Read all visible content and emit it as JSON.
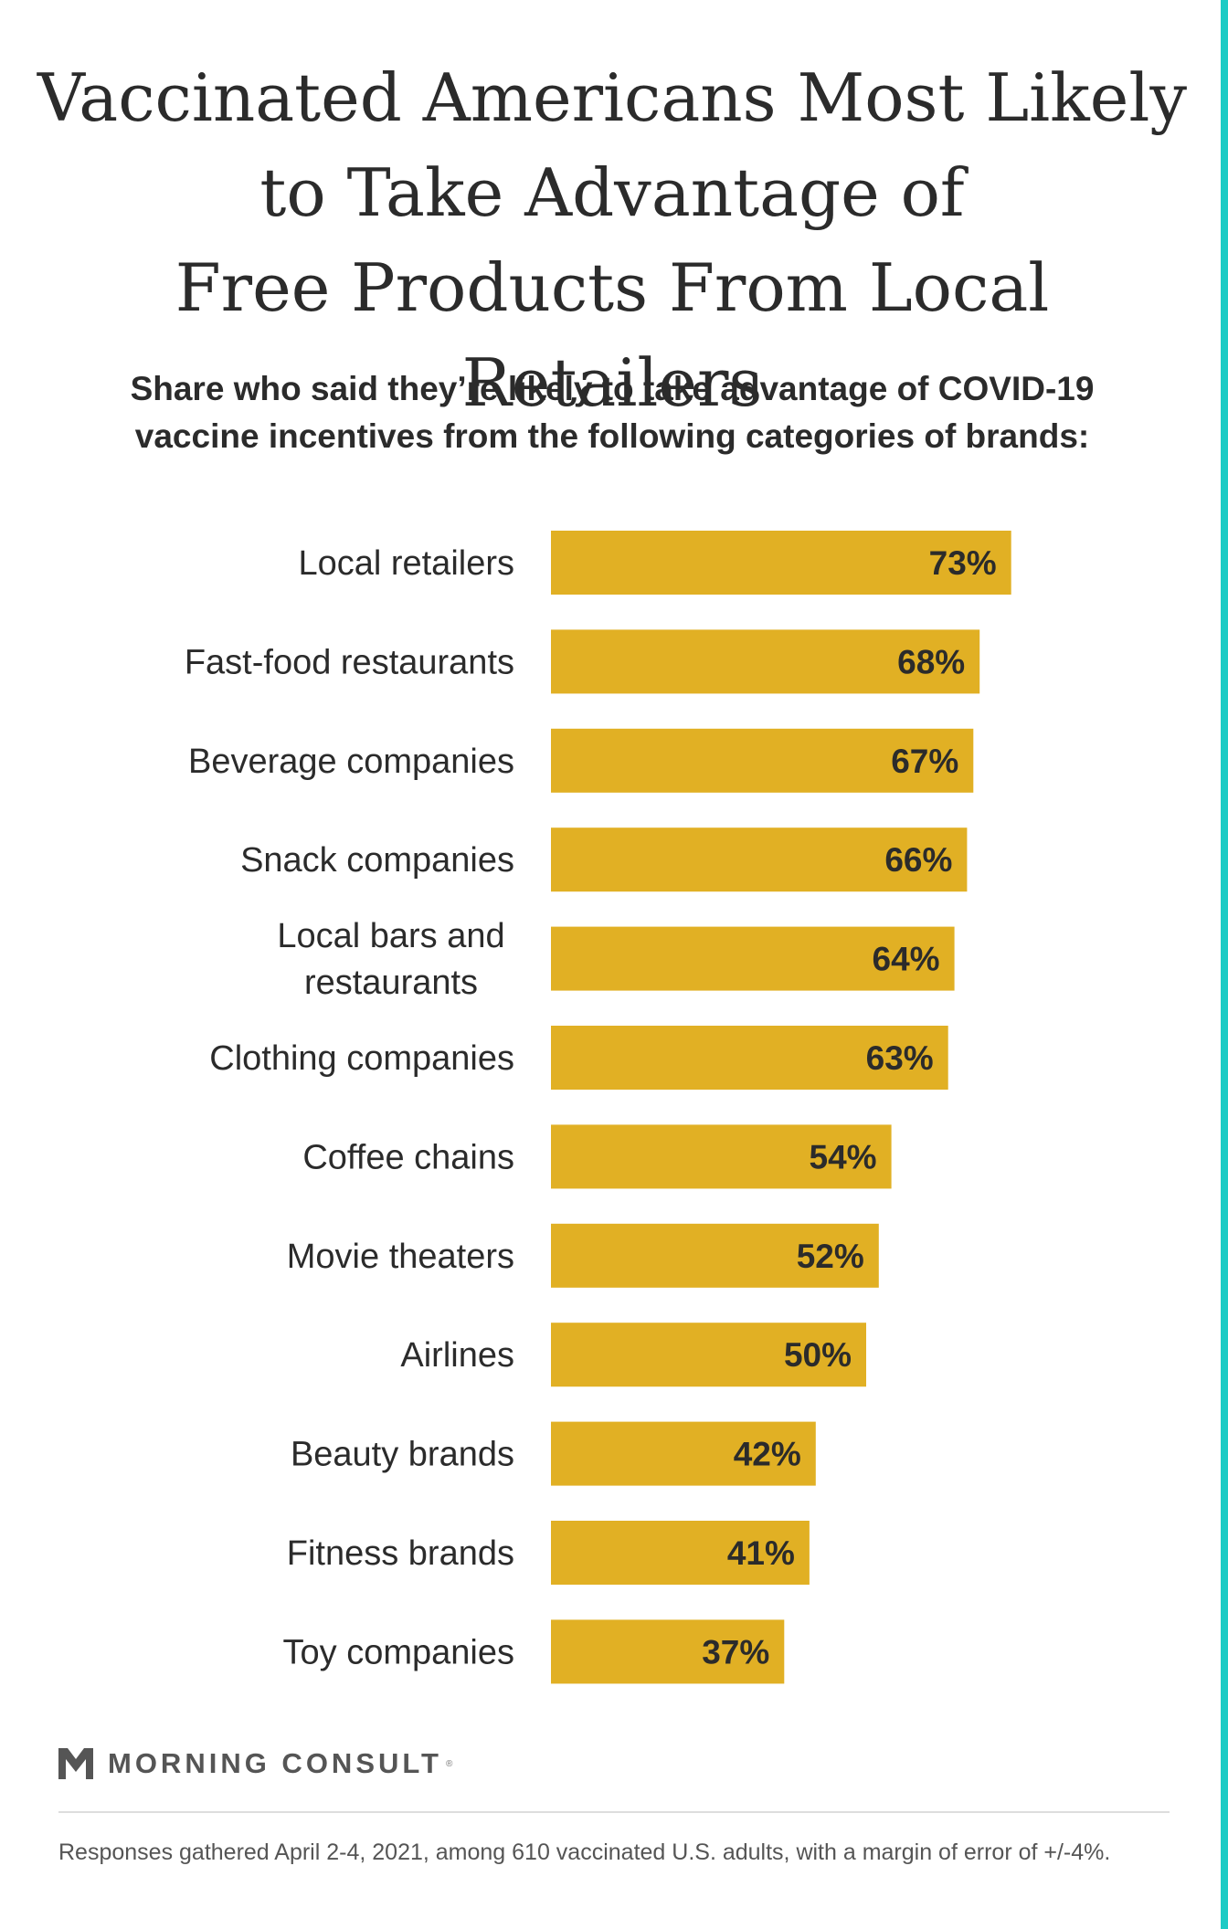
{
  "title_lines": [
    "Vaccinated Americans Most Likely",
    "to Take Advantage of",
    "Free Products From Local Retailers"
  ],
  "subtitle_lines": [
    "Share who said they’re likely to take advantage of COVID-19",
    "vaccine incentives from the following categories of brands:"
  ],
  "colors": {
    "bar": "#e1b024",
    "accent": "#1ecbc5",
    "text": "#2b2b2b"
  },
  "chart_data": {
    "type": "bar",
    "orientation": "horizontal",
    "categories": [
      [
        "Local retailers"
      ],
      [
        "Fast-food restaurants"
      ],
      [
        "Beverage companies"
      ],
      [
        "Snack companies"
      ],
      [
        "Local bars and",
        "restaurants"
      ],
      [
        "Clothing companies"
      ],
      [
        "Coffee chains"
      ],
      [
        "Movie theaters"
      ],
      [
        "Airlines"
      ],
      [
        "Beauty brands"
      ],
      [
        "Fitness brands"
      ],
      [
        "Toy companies"
      ]
    ],
    "values": [
      73,
      68,
      67,
      66,
      64,
      63,
      54,
      52,
      50,
      42,
      41,
      37
    ],
    "value_labels": [
      "73%",
      "68%",
      "67%",
      "66%",
      "64%",
      "63%",
      "54%",
      "52%",
      "50%",
      "42%",
      "41%",
      "37%"
    ],
    "unit": "%",
    "xlim": [
      0,
      100
    ],
    "grid": false,
    "legend": "none"
  },
  "branding": {
    "logo_text": "MORNING CONSULT",
    "logo_reg": "®",
    "logo_icon": "morning-consult-m-icon"
  },
  "footnote": "Responses gathered April 2-4, 2021, among 610 vaccinated U.S. adults, with a margin of error of +/-4%."
}
